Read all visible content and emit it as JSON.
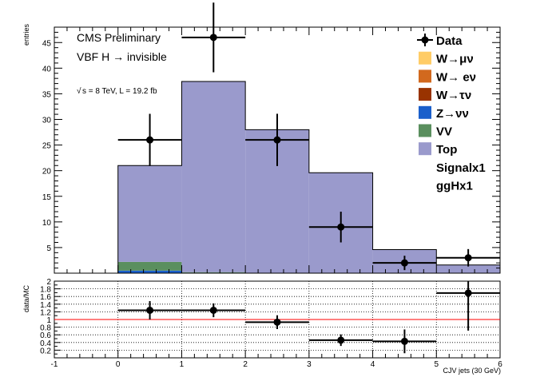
{
  "chart_data": [
    {
      "type": "bar",
      "style": "stacked histogram with data points",
      "x_bin_edges": [
        0,
        1,
        2,
        3,
        4,
        5,
        6
      ],
      "xlim": [
        -1,
        6
      ],
      "ylim": [
        0,
        48
      ],
      "ylabel": "entries",
      "yticks": [
        "5",
        "10",
        "15",
        "20",
        "25",
        "30",
        "35",
        "40",
        "45"
      ],
      "annotations": {
        "title": "CMS Preliminary",
        "process": "VBF H → invisible",
        "energy_prefix": "√",
        "energy": "s = 8 TeV, L = 19.2 fb"
      },
      "stack": [
        {
          "name": "Z→νν",
          "color": "#1a5fcb",
          "values": [
            0.5,
            0.1,
            0,
            0,
            0,
            0
          ]
        },
        {
          "name": "VV",
          "color": "#5a8f5e",
          "values": [
            1.7,
            0.1,
            0,
            0,
            0,
            0
          ]
        },
        {
          "name": "Top",
          "color": "#9a9acc",
          "values": [
            18.8,
            37.2,
            28.0,
            19.6,
            4.6,
            1.6
          ]
        }
      ],
      "data_points": {
        "name": "Data",
        "x": [
          0.5,
          1.5,
          2.5,
          3.5,
          4.5,
          5.5
        ],
        "y": [
          26,
          46,
          26,
          9,
          2,
          3
        ],
        "yerr": [
          5.1,
          6.8,
          5.1,
          3.0,
          1.4,
          1.7
        ]
      },
      "legend": {
        "position": "top-right",
        "entries": [
          {
            "label": "Data",
            "kind": "marker"
          },
          {
            "label": "W→μν",
            "kind": "box",
            "color": "#ffcc66"
          },
          {
            "label": "W→ eν",
            "kind": "box",
            "color": "#d2691e"
          },
          {
            "label": "W→τν",
            "kind": "box",
            "color": "#993300"
          },
          {
            "label": "Z→νν",
            "kind": "box",
            "color": "#1a5fcb"
          },
          {
            "label": "VV",
            "kind": "box",
            "color": "#5a8f5e"
          },
          {
            "label": "Top",
            "kind": "box",
            "color": "#9a9acc"
          },
          {
            "label": "Signalx1",
            "kind": "text"
          },
          {
            "label": "ggHx1",
            "kind": "text"
          }
        ]
      }
    },
    {
      "type": "scatter",
      "style": "ratio panel",
      "ylabel": "data/MC",
      "xlabel": "CJV jets (30 GeV)",
      "xlim": [
        -1,
        6
      ],
      "ylim": [
        0,
        2
      ],
      "xticks": [
        "-1",
        "0",
        "1",
        "2",
        "3",
        "4",
        "5",
        "6"
      ],
      "yticks": [
        "0.2",
        "0.4",
        "0.6",
        "0.8",
        "1",
        "1.2",
        "1.4",
        "1.6",
        "1.8",
        "2"
      ],
      "grid": true,
      "reference_line": 1,
      "reference_color": "#ff0000",
      "x": [
        0.5,
        1.5,
        2.5,
        3.5,
        4.5,
        5.5
      ],
      "y": [
        1.24,
        1.24,
        0.93,
        0.46,
        0.43,
        1.69
      ],
      "yerr": [
        0.24,
        0.18,
        0.18,
        0.15,
        0.31,
        0.98
      ]
    }
  ]
}
